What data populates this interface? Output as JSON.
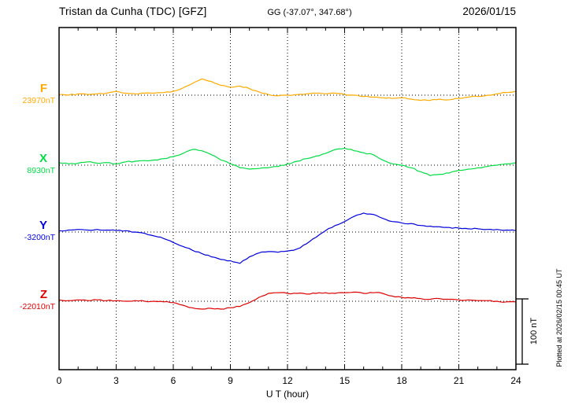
{
  "header": {
    "station_title": "Tristan da Cunha (TDC)  [GFZ]",
    "geographic_coords": "GG (-37.07°, 347.68°)",
    "date": "2026/01/15"
  },
  "axis": {
    "xlabel": "U T (hour)",
    "ticks": [
      "0",
      "3",
      "6",
      "9",
      "12",
      "15",
      "18",
      "21",
      "24"
    ]
  },
  "scale_bar": {
    "label": "100 nT"
  },
  "plot_note": "Plotted at 2026/02/15 00:45 UT",
  "chart_data": {
    "type": "line",
    "title": "Magnetogram Tristan da Cunha (TDC) [GFZ] 2026/01/15",
    "xlabel": "U T (hour)",
    "x_range": [
      0,
      24
    ],
    "x_tick_interval_hours": 3,
    "sample_step_hours": 0.5,
    "scale_bar_nT": 100,
    "grid": "dotted vertical every 3 h, dotted horizontal baseline per component",
    "series": [
      {
        "name": "F",
        "baseline_label": "23970nT",
        "baseline_nT": 23970,
        "color": "#ffaa00",
        "offsets_nT": [
          1,
          0,
          2,
          1,
          2,
          3,
          6,
          3,
          2,
          3,
          3,
          4,
          6,
          11,
          18,
          25,
          21,
          15,
          12,
          14,
          10,
          5,
          1,
          -1,
          0,
          1,
          2,
          3,
          2,
          3,
          1,
          0,
          -2,
          -3,
          -4,
          -5,
          -4,
          -6,
          -8,
          -8,
          -6,
          -7,
          -5,
          -3,
          -2,
          0,
          2,
          4,
          6
        ]
      },
      {
        "name": "X",
        "baseline_label": "8930nT",
        "baseline_nT": 8930,
        "color": "#00dd44",
        "offsets_nT": [
          4,
          2,
          3,
          5,
          3,
          4,
          2,
          5,
          6,
          7,
          8,
          10,
          13,
          18,
          24,
          22,
          16,
          8,
          2,
          -4,
          -6,
          -5,
          -4,
          -2,
          2,
          6,
          10,
          14,
          18,
          24,
          26,
          22,
          19,
          16,
          8,
          2,
          0,
          -4,
          -10,
          -16,
          -14,
          -12,
          -8,
          -6,
          -4,
          -2,
          0,
          2,
          4
        ]
      },
      {
        "name": "Y",
        "baseline_label": "-3200nT",
        "baseline_nT": -3200,
        "color": "#0000dd",
        "offsets_nT": [
          2,
          3,
          4,
          3,
          4,
          3,
          2,
          2,
          0,
          -2,
          -6,
          -10,
          -16,
          -22,
          -28,
          -33,
          -38,
          -42,
          -44,
          -48,
          -38,
          -32,
          -30,
          -31,
          -29,
          -26,
          -18,
          -8,
          2,
          10,
          16,
          24,
          29,
          27,
          21,
          16,
          14,
          13,
          10,
          9,
          8,
          7,
          6,
          5,
          5,
          4,
          4,
          3,
          2
        ]
      },
      {
        "name": "Z",
        "baseline_label": "-22010nT",
        "baseline_nT": -22010,
        "color": "#dd0000",
        "offsets_nT": [
          2,
          1,
          2,
          1,
          2,
          1,
          1,
          0,
          1,
          0,
          0,
          -1,
          -2,
          -6,
          -10,
          -12,
          -11,
          -12,
          -10,
          -8,
          -2,
          6,
          12,
          13,
          12,
          12,
          11,
          12,
          13,
          12,
          13,
          14,
          12,
          13,
          12,
          8,
          6,
          5,
          4,
          3,
          4,
          3,
          2,
          2,
          1,
          1,
          0,
          -1,
          -1
        ]
      }
    ]
  }
}
